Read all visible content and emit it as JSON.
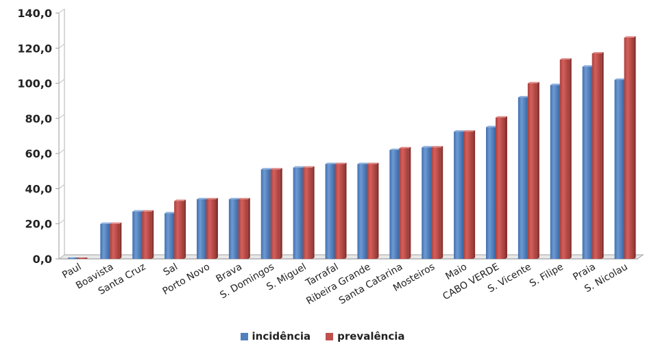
{
  "chart_data": {
    "type": "bar",
    "title": "",
    "xlabel": "",
    "ylabel": "",
    "ylim": [
      0,
      140
    ],
    "yticks": [
      "0,0",
      "20,0",
      "40,0",
      "60,0",
      "80,0",
      "100,0",
      "120,0",
      "140,0"
    ],
    "grid": false,
    "legend_position": "bottom",
    "categories": [
      "Paul",
      "Boavista",
      "Santa Cruz",
      "Sal",
      "Porto Novo",
      "Brava",
      "S. Domingos",
      "S. Miguel",
      "Tarrafal",
      "Ribeira Grande",
      "Santa Catarina",
      "Mosteiros",
      "Maio",
      "CABO VERDE",
      "S. Vicente",
      "S. Filipe",
      "Praia",
      "S. Nicolau"
    ],
    "series": [
      {
        "name": "incidência",
        "color": "#4F81BD",
        "values": [
          0.0,
          20.0,
          27.0,
          26.0,
          34.0,
          34.0,
          51.0,
          52.0,
          54.0,
          54.0,
          62.0,
          63.5,
          72.5,
          75.0,
          92.0,
          99.0,
          109.5,
          102.0
        ]
      },
      {
        "name": "prevalência",
        "color": "#C0504D",
        "values": [
          0.0,
          20.0,
          27.0,
          33.0,
          34.0,
          34.0,
          51.0,
          52.0,
          54.0,
          54.0,
          63.0,
          63.5,
          72.5,
          80.5,
          100.0,
          113.5,
          117.0,
          126.0
        ]
      }
    ]
  }
}
